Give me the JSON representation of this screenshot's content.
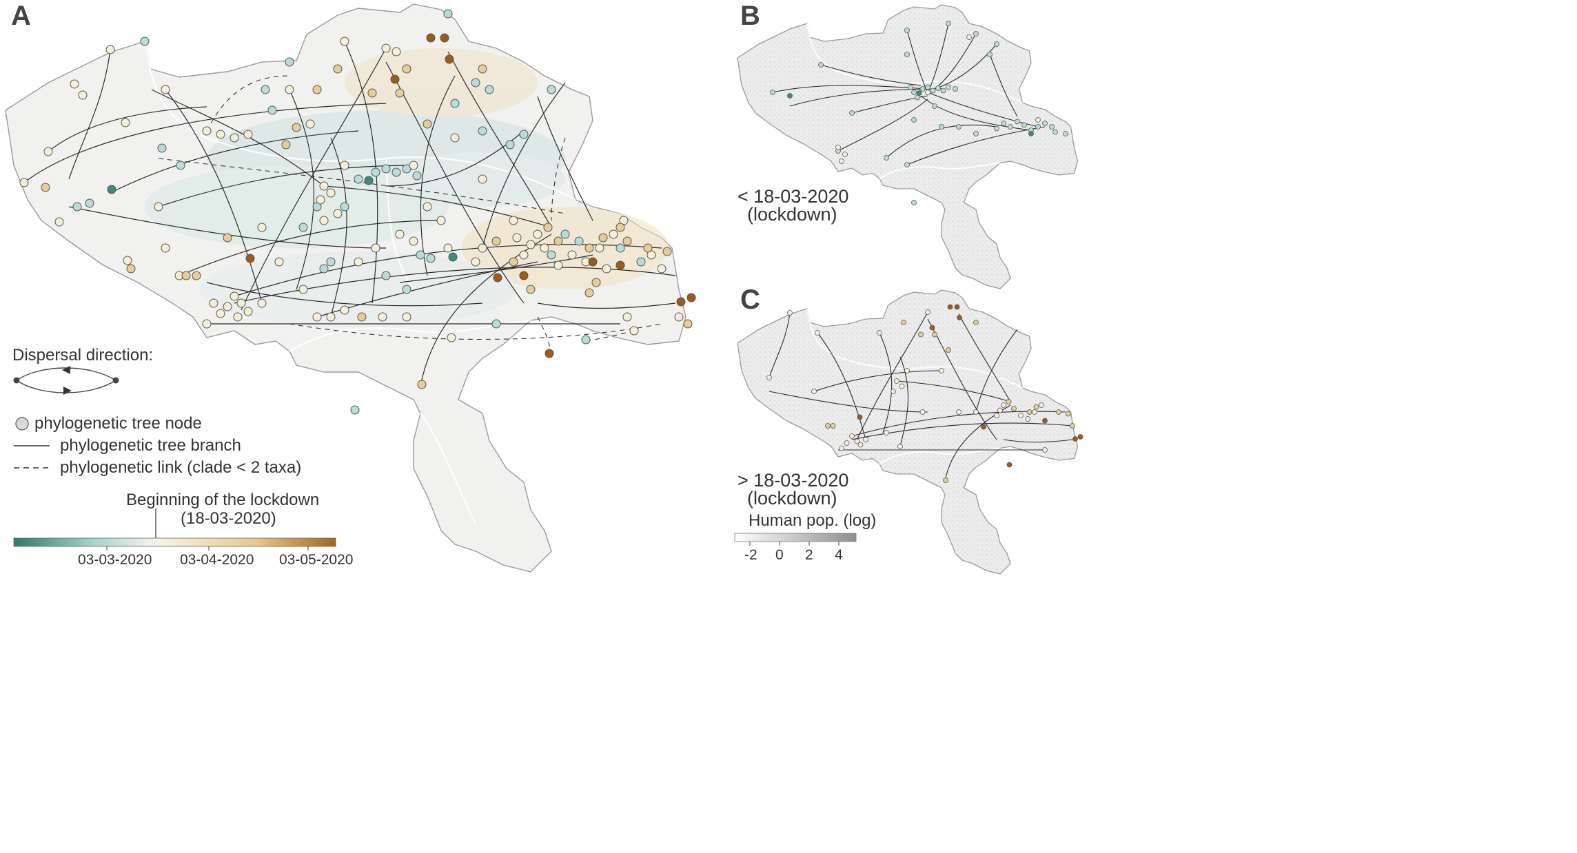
{
  "panels": {
    "a": {
      "letter": "A"
    },
    "b": {
      "letter": "B",
      "period_line1": "< 18-03-2020",
      "period_line2": "(lockdown)"
    },
    "c": {
      "letter": "C",
      "period_line1": "> 18-03-2020",
      "period_line2": "(lockdown)"
    }
  },
  "legend": {
    "dispersal_title": "Dispersal direction:",
    "node_label": "phylogenetic tree node",
    "branch_label": "phylogenetic tree branch",
    "link_label": "phylogenetic link (clade < 2 taxa)",
    "lockdown_line1": "Beginning of the lockdown",
    "lockdown_line2": "(18-03-2020)",
    "time_ticks": [
      "03-03-2020",
      "03-04-2020",
      "03-05-2020"
    ],
    "time_gradient_colors": [
      "#2e7a6e",
      "#a8d3cf",
      "#f6f4ec",
      "#e8c98d",
      "#a4651f"
    ]
  },
  "population_legend": {
    "title": "Human pop. (log)",
    "ticks": [
      "-2",
      "0",
      "2",
      "4"
    ],
    "gradient_colors": [
      "#ffffff",
      "#8f8f8f"
    ]
  },
  "colors": {
    "country_fill": "#f1f1f0",
    "country_stroke": "#9a9a9a",
    "region_border": "#ffffff",
    "branch": "#2b2b2b",
    "node_teal": "#b9dcda",
    "node_dark_teal": "#3d8a80",
    "node_cream": "#f6efd8",
    "node_tan": "#e6cc96",
    "node_brown": "#9c5a1c"
  }
}
